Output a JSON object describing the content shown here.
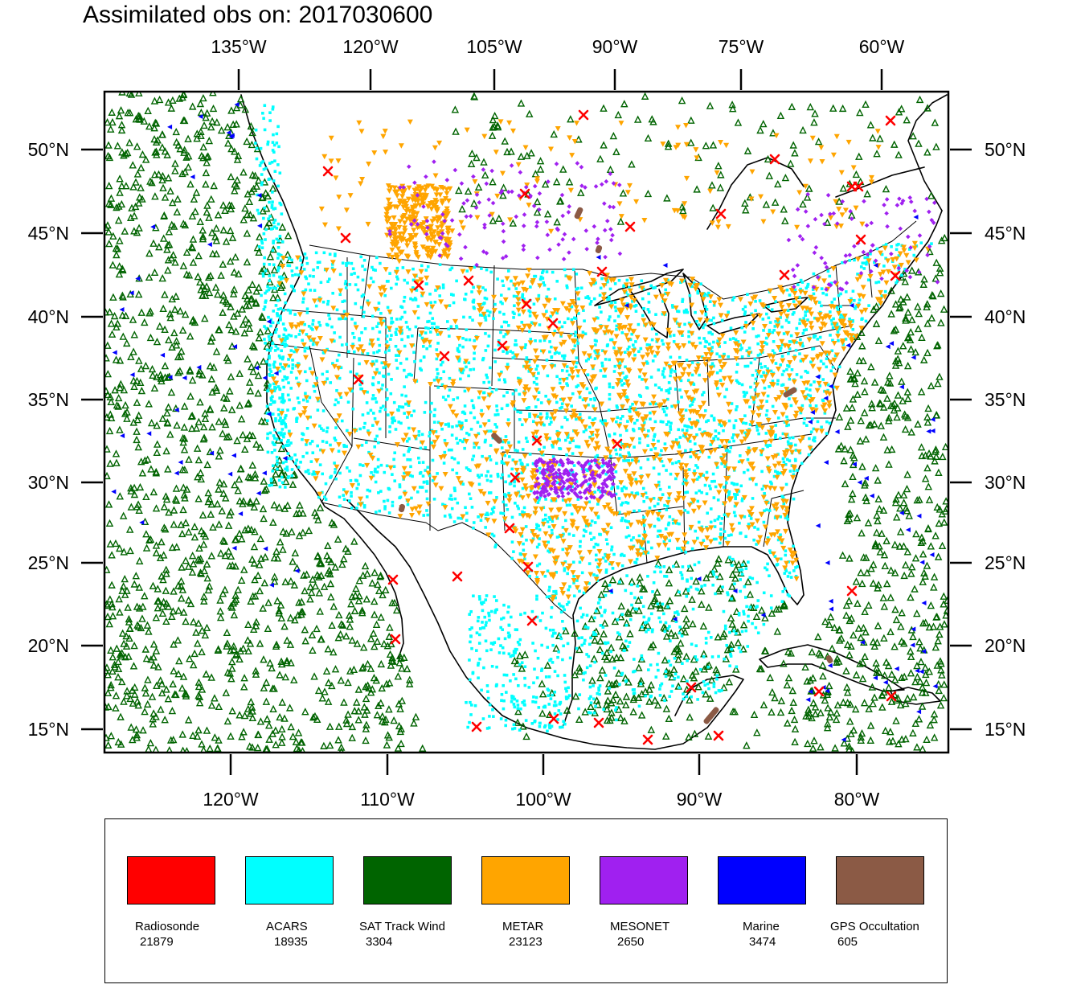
{
  "title": "Assimilated obs on: 2017030600",
  "colors": {
    "radiosonde": "#ff0000",
    "acars": "#00ffff",
    "sat_track_wind": "#006400",
    "metar": "#ffa500",
    "mesonet": "#a020f0",
    "marine": "#0000ff",
    "gps_occultation": "#8b5a45"
  },
  "axes": {
    "top": [
      "135°W",
      "120°W",
      "105°W",
      "90°W",
      "75°W",
      "60°W"
    ],
    "bottom": [
      "120°W",
      "110°W",
      "100°W",
      "90°W",
      "80°W"
    ],
    "left": [
      "50°N",
      "45°N",
      "40°N",
      "35°N",
      "30°N",
      "25°N",
      "20°N",
      "15°N"
    ],
    "right": [
      "50°N",
      "45°N",
      "40°N",
      "35°N",
      "30°N",
      "25°N",
      "20°N",
      "15°N"
    ]
  },
  "map": {
    "projection": "lambert-conformal",
    "domain": "Continental United States, Gulf of Mexico, adjacent Pacific and Atlantic"
  },
  "legend": [
    {
      "name": "Radiosonde",
      "count": "21879",
      "color": "#ff0000",
      "icon": "x-marker-icon"
    },
    {
      "name": "ACARS",
      "count": "18935",
      "color": "#00ffff",
      "icon": "dot-marker-icon"
    },
    {
      "name": "SAT Track Wind",
      "count": "3304",
      "color": "#006400",
      "icon": "triangle-marker-icon"
    },
    {
      "name": "METAR",
      "count": "23123",
      "color": "#ffa500",
      "icon": "inverted-triangle-marker-icon"
    },
    {
      "name": "MESONET",
      "count": "2650",
      "color": "#a020f0",
      "icon": "diamond-marker-icon"
    },
    {
      "name": "Marine",
      "count": "3474",
      "color": "#0000ff",
      "icon": "left-triangle-marker-icon"
    },
    {
      "name": "GPS Occultation",
      "count": "605",
      "color": "#8b5a45",
      "icon": "streak-marker-icon"
    }
  ]
}
